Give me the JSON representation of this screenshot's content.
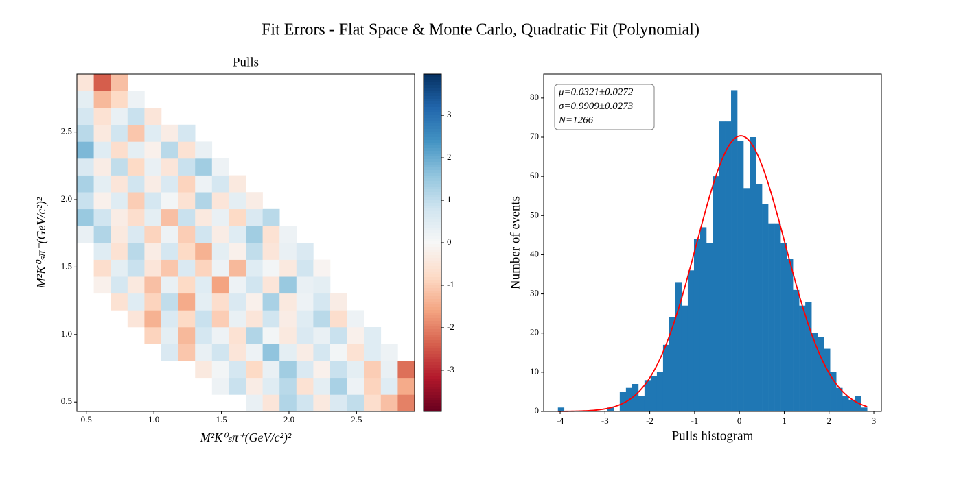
{
  "suptitle": "Fit Errors - Flat Space & Monte Carlo, Quadratic Fit (Polynomial)",
  "chart_data": [
    {
      "type": "heatmap",
      "title": "Pulls",
      "x_label": "M²K⁰ₛπ⁺(GeV/c²)²",
      "y_label": "M²K⁰ₛπ⁻(GeV/c²)²",
      "colormap": "RdBu",
      "xlim": [
        0.43,
        2.93
      ],
      "ylim": [
        0.43,
        2.93
      ],
      "xticks": [
        0.5,
        {
          "value": 1,
          "label": "1.0"
        },
        1.5,
        {
          "value": 2,
          "label": "2.0"
        },
        2.5
      ],
      "yticks": [
        0.5,
        {
          "value": 1,
          "label": "1.0"
        },
        1.5,
        {
          "value": 2,
          "label": "2.0"
        },
        2.5
      ],
      "xbins": [
        0.43,
        0.555,
        0.68,
        0.805,
        0.93,
        1.055,
        1.18,
        1.305,
        1.43,
        1.555,
        1.68,
        1.805,
        1.93,
        2.055,
        2.18,
        2.305,
        2.43,
        2.555,
        2.68,
        2.805,
        2.93
      ],
      "ybins": [
        0.43,
        0.555,
        0.68,
        0.805,
        0.93,
        1.055,
        1.18,
        1.305,
        1.43,
        1.555,
        1.68,
        1.805,
        1.93,
        2.055,
        2.18,
        2.305,
        2.43,
        2.555,
        2.68,
        2.805,
        2.93
      ],
      "z": [
        [
          null,
          null,
          null,
          null,
          null,
          null,
          null,
          null,
          null,
          null,
          0.3,
          -0.5,
          1.2,
          0.8,
          -0.4,
          0.6,
          1.0,
          -0.7,
          -1.2,
          -2.0
        ],
        [
          null,
          null,
          null,
          null,
          null,
          null,
          null,
          null,
          0.2,
          0.9,
          -0.3,
          0.5,
          1.1,
          -0.6,
          0.4,
          1.3,
          0.2,
          -0.9,
          0.5,
          -1.5
        ],
        [
          null,
          null,
          null,
          null,
          null,
          null,
          null,
          -0.4,
          0.1,
          0.7,
          -0.8,
          0.3,
          1.4,
          0.6,
          -0.2,
          0.9,
          0.4,
          -1.0,
          0.3,
          -2.2
        ],
        [
          null,
          null,
          null,
          null,
          null,
          0.6,
          -1.1,
          0.3,
          0.8,
          -0.5,
          0.2,
          1.6,
          0.4,
          -0.3,
          0.7,
          0.1,
          -0.6,
          0.5,
          0.2,
          null
        ],
        [
          null,
          null,
          null,
          null,
          -0.9,
          0.4,
          -1.3,
          0.7,
          0.2,
          -0.6,
          1.2,
          0.1,
          -0.4,
          0.6,
          0.3,
          0.9,
          -0.2,
          0.5,
          null,
          null
        ],
        [
          null,
          null,
          null,
          -0.5,
          -1.4,
          0.6,
          -0.8,
          0.9,
          -1.0,
          0.3,
          -0.5,
          0.8,
          -0.3,
          0.5,
          1.1,
          -0.7,
          0.2,
          null,
          null,
          null
        ],
        [
          null,
          null,
          -0.6,
          0.5,
          -0.9,
          1.0,
          -1.5,
          0.4,
          -0.7,
          0.6,
          -0.2,
          1.3,
          -0.4,
          0.2,
          0.7,
          -0.3,
          null,
          null,
          null,
          null
        ],
        [
          null,
          -0.2,
          0.7,
          -0.4,
          -1.2,
          0.3,
          -0.8,
          0.5,
          -1.6,
          0.2,
          0.8,
          -0.5,
          1.5,
          0.3,
          0.4,
          null,
          null,
          null,
          null,
          null
        ],
        [
          null,
          -0.7,
          0.4,
          0.9,
          -0.5,
          -1.1,
          0.6,
          -0.9,
          0.2,
          -1.3,
          0.5,
          0.1,
          -0.4,
          0.8,
          -0.1,
          null,
          null,
          null,
          null,
          null
        ],
        [
          null,
          0.5,
          -0.6,
          1.1,
          -0.3,
          0.7,
          -0.8,
          -1.4,
          0.4,
          -0.2,
          1.0,
          -0.5,
          0.3,
          0.6,
          null,
          null,
          null,
          null,
          null,
          null
        ],
        [
          0.3,
          1.2,
          -0.4,
          0.6,
          -0.9,
          0.2,
          -1.0,
          0.8,
          -0.3,
          0.5,
          1.4,
          -0.6,
          0.2,
          null,
          null,
          null,
          null,
          null,
          null,
          null
        ],
        [
          1.5,
          0.8,
          -0.3,
          -0.7,
          0.4,
          -1.2,
          0.9,
          -0.4,
          0.3,
          -0.8,
          0.6,
          1.1,
          null,
          null,
          null,
          null,
          null,
          null,
          null,
          null
        ],
        [
          0.9,
          -0.2,
          0.5,
          -1.0,
          0.7,
          0.1,
          -0.6,
          1.2,
          -0.5,
          0.4,
          -0.3,
          null,
          null,
          null,
          null,
          null,
          null,
          null,
          null,
          null
        ],
        [
          1.3,
          0.4,
          -0.5,
          0.8,
          -0.3,
          0.6,
          -0.9,
          0.2,
          0.7,
          -0.4,
          null,
          null,
          null,
          null,
          null,
          null,
          null,
          null,
          null,
          null
        ],
        [
          0.6,
          -0.3,
          1.0,
          -0.8,
          0.3,
          -0.5,
          0.9,
          1.4,
          0.2,
          null,
          null,
          null,
          null,
          null,
          null,
          null,
          null,
          null,
          null,
          null
        ],
        [
          1.8,
          0.5,
          -0.7,
          0.4,
          -0.2,
          1.1,
          -0.6,
          0.3,
          null,
          null,
          null,
          null,
          null,
          null,
          null,
          null,
          null,
          null,
          null,
          null
        ],
        [
          1.1,
          -0.4,
          0.8,
          -1.1,
          0.5,
          -0.3,
          0.7,
          null,
          null,
          null,
          null,
          null,
          null,
          null,
          null,
          null,
          null,
          null,
          null,
          null
        ],
        [
          0.7,
          -0.6,
          0.3,
          0.9,
          -0.5,
          null,
          null,
          null,
          null,
          null,
          null,
          null,
          null,
          null,
          null,
          null,
          null,
          null,
          null,
          null
        ],
        [
          0.4,
          -1.3,
          -0.8,
          0.2,
          null,
          null,
          null,
          null,
          null,
          null,
          null,
          null,
          null,
          null,
          null,
          null,
          null,
          null,
          null,
          null
        ],
        [
          -0.5,
          -2.4,
          -1.2,
          null,
          null,
          null,
          null,
          null,
          null,
          null,
          null,
          null,
          null,
          null,
          null,
          null,
          null,
          null,
          null,
          null
        ]
      ],
      "clim": [
        -3.97,
        3.97
      ],
      "cticks": [
        -3,
        -2,
        -1,
        0,
        1,
        2,
        3
      ]
    },
    {
      "type": "histogram",
      "x_label": "Pulls histogram",
      "y_label": "Number of events",
      "color": "#1f77b4",
      "xlim": [
        -4.368,
        3.168
      ],
      "ylim": [
        0,
        86.1
      ],
      "xticks": [
        -4,
        -3,
        -2,
        -1,
        0,
        1,
        2,
        3
      ],
      "yticks": [
        0,
        10,
        20,
        30,
        40,
        50,
        60,
        70,
        80
      ],
      "bins": [
        -4.05,
        -3.912,
        -3.774,
        -3.636,
        -3.498,
        -3.36,
        -3.222,
        -3.084,
        -2.946,
        -2.808,
        -2.67,
        -2.532,
        -2.394,
        -2.256,
        -2.118,
        -1.98,
        -1.842,
        -1.704,
        -1.566,
        -1.428,
        -1.29,
        -1.152,
        -1.014,
        -0.876,
        -0.738,
        -0.6,
        -0.462,
        -0.324,
        -0.186,
        -0.048,
        0.09,
        0.228,
        0.366,
        0.504,
        0.642,
        0.78,
        0.918,
        1.056,
        1.194,
        1.332,
        1.47,
        1.608,
        1.746,
        1.884,
        2.022,
        2.16,
        2.298,
        2.436,
        2.574,
        2.712,
        2.85
      ],
      "counts": [
        1,
        0,
        0,
        0,
        0,
        0,
        0,
        0,
        1,
        0,
        5,
        6,
        7,
        4,
        8,
        9,
        10,
        17,
        24,
        33,
        27,
        36,
        44,
        47,
        43,
        60,
        74,
        74,
        82,
        69,
        57,
        70,
        58,
        53,
        48,
        48,
        43,
        39,
        31,
        27,
        28,
        20,
        19,
        16,
        10,
        6,
        4,
        3,
        4,
        1
      ],
      "fit_curve": {
        "mu": 0.0321,
        "sigma": 0.9909,
        "n": 1266,
        "color": "red"
      },
      "stats_box": [
        "μ=0.0321±0.0272",
        "σ=0.9909±0.0273",
        "N=1266"
      ]
    }
  ]
}
